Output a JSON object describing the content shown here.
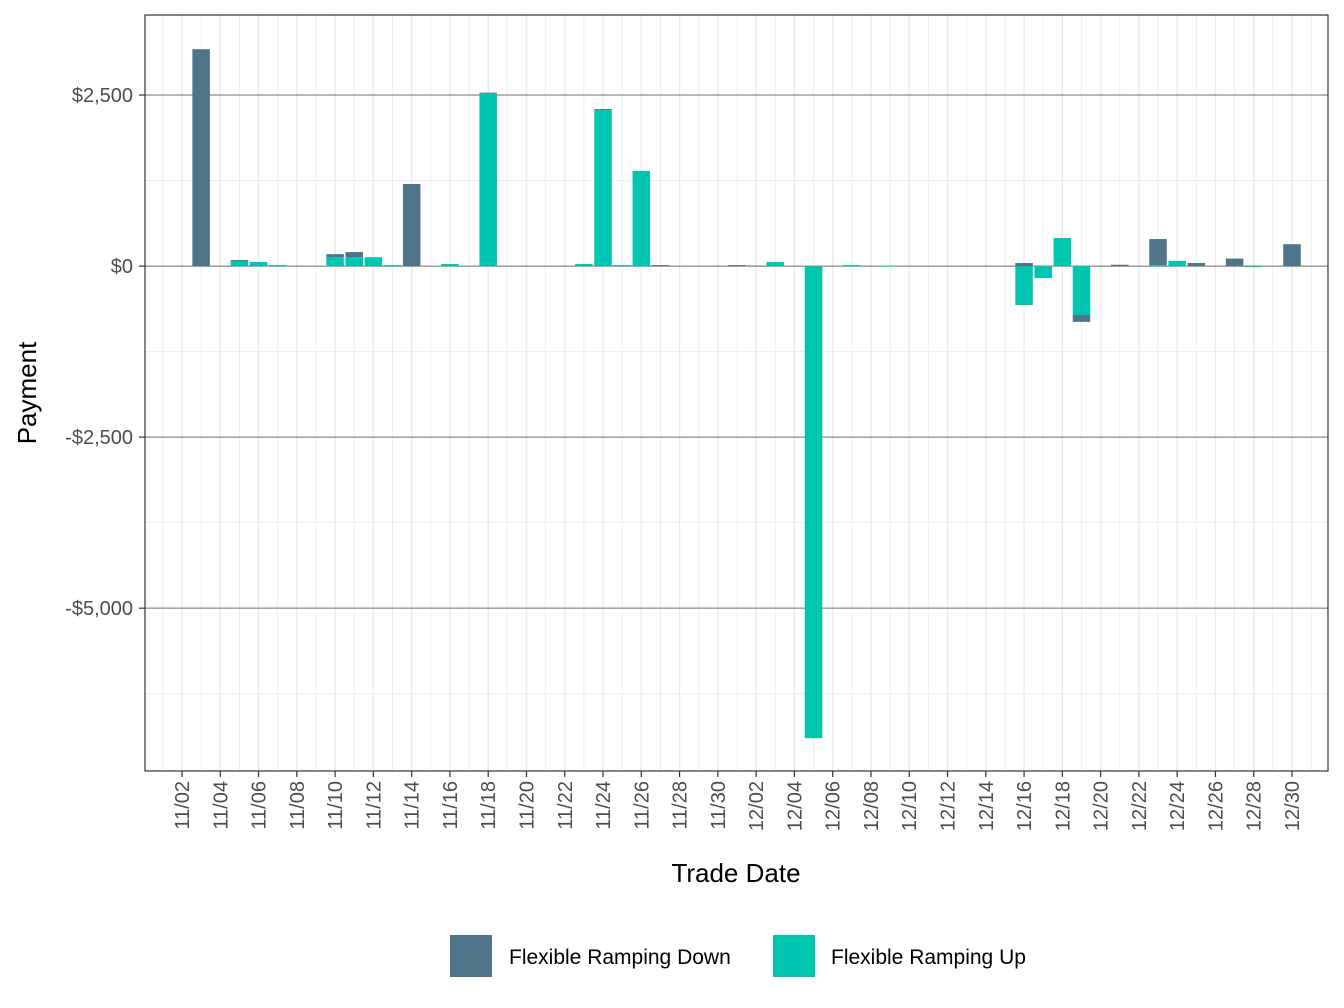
{
  "chart_data": {
    "type": "bar",
    "stacked": true,
    "title": "",
    "xlabel": "Trade Date",
    "ylabel": "Payment",
    "ylim": [
      -7380,
      3670
    ],
    "xlim": [
      "11/01",
      "12/31"
    ],
    "y_ticks": [
      {
        "value": 2500,
        "label": "$2,500"
      },
      {
        "value": 0,
        "label": "$0"
      },
      {
        "value": -2500,
        "label": "-$2,500"
      },
      {
        "value": -5000,
        "label": "-$5,000"
      }
    ],
    "x_ticks": [
      "11/02",
      "11/04",
      "11/06",
      "11/08",
      "11/10",
      "11/12",
      "11/14",
      "11/16",
      "11/18",
      "11/20",
      "11/22",
      "11/24",
      "11/26",
      "11/28",
      "11/30",
      "12/02",
      "12/04",
      "12/06",
      "12/08",
      "12/10",
      "12/12",
      "12/14",
      "12/16",
      "12/18",
      "12/20",
      "12/22",
      "12/24",
      "12/26",
      "12/28",
      "12/30"
    ],
    "grid": true,
    "legend_position": "bottom",
    "series": [
      {
        "name": "Flexible Ramping Down",
        "color": "#4e7489"
      },
      {
        "name": "Flexible Ramping Up",
        "color": "#00c5b0"
      }
    ],
    "data": [
      {
        "date": "11/03",
        "down": 3170,
        "up": 0
      },
      {
        "date": "11/05",
        "down": 15,
        "up": 75
      },
      {
        "date": "11/06",
        "down": 0,
        "up": 60
      },
      {
        "date": "11/07",
        "down": 0,
        "up": 15
      },
      {
        "date": "11/10",
        "down": 45,
        "up": 130
      },
      {
        "date": "11/11",
        "down": 75,
        "up": 130
      },
      {
        "date": "11/12",
        "down": 0,
        "up": 130
      },
      {
        "date": "11/13",
        "down": 0,
        "up": 15
      },
      {
        "date": "11/14",
        "down": 1200,
        "up": 0
      },
      {
        "date": "11/16",
        "down": 0,
        "up": 30
      },
      {
        "date": "11/18",
        "down": 15,
        "up": 2520
      },
      {
        "date": "11/23",
        "down": 0,
        "up": 30
      },
      {
        "date": "11/24",
        "down": 15,
        "up": 2280
      },
      {
        "date": "11/25",
        "down": 0,
        "up": 15
      },
      {
        "date": "11/26",
        "down": 0,
        "up": 1390
      },
      {
        "date": "11/27",
        "down": 15,
        "up": 0
      },
      {
        "date": "12/01",
        "down": 15,
        "up": 0
      },
      {
        "date": "12/02",
        "down": 7,
        "up": 0
      },
      {
        "date": "12/03",
        "down": 0,
        "up": 60
      },
      {
        "date": "12/05",
        "down": 0,
        "up": -6900
      },
      {
        "date": "12/07",
        "down": 0,
        "up": 15
      },
      {
        "date": "12/09",
        "down": 0,
        "up": 7
      },
      {
        "date": "12/16",
        "down": 45,
        "up": -570
      },
      {
        "date": "12/17",
        "down": 0,
        "up": -175
      },
      {
        "date": "12/18",
        "down": 0,
        "up": 410
      },
      {
        "date": "12/19",
        "down": -100,
        "up": -715
      },
      {
        "date": "12/21",
        "down": 20,
        "up": 0
      },
      {
        "date": "12/23",
        "down": 380,
        "up": 15
      },
      {
        "date": "12/24",
        "down": 0,
        "up": 75
      },
      {
        "date": "12/25",
        "down": 45,
        "up": 0
      },
      {
        "date": "12/27",
        "down": 110,
        "up": 0
      },
      {
        "date": "12/28",
        "down": 0,
        "up": -15
      },
      {
        "date": "12/30",
        "down": 320,
        "up": 0
      }
    ]
  }
}
